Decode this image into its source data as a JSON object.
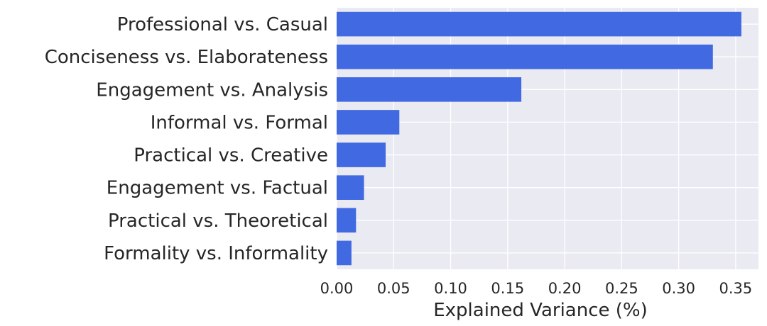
{
  "chart_data": {
    "type": "bar",
    "orientation": "horizontal",
    "categories": [
      "Professional vs. Casual",
      "Conciseness vs. Elaborateness",
      "Engagement vs. Analysis",
      "Informal vs. Formal",
      "Practical vs. Creative",
      "Engagement vs. Factual",
      "Practical vs. Theoretical",
      "Formality vs. Informality"
    ],
    "values": [
      0.355,
      0.33,
      0.162,
      0.055,
      0.043,
      0.024,
      0.017,
      0.013
    ],
    "xlabel": "Explained Variance (%)",
    "ylabel": "",
    "xlim": [
      0,
      0.37
    ],
    "xticks": [
      "0.00",
      "0.05",
      "0.10",
      "0.15",
      "0.20",
      "0.25",
      "0.30",
      "0.35"
    ],
    "xtick_values": [
      0,
      0.05,
      0.1,
      0.15,
      0.2,
      0.25,
      0.3,
      0.35
    ],
    "grid": true,
    "colors": {
      "bar": "#4169e1",
      "background": "#eaeaf2",
      "grid": "#ffffff",
      "text": "#262626"
    }
  }
}
